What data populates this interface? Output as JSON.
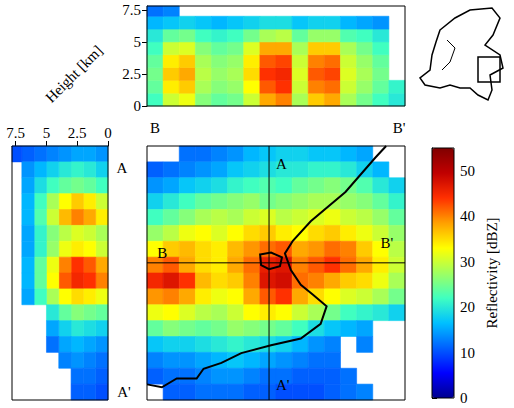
{
  "chart_data": [
    {
      "type": "heatmap",
      "tick_labels": false,
      "map_labels": [
        "A",
        "A'",
        "B",
        "B'"
      ],
      "cells": [
        [
          null,
          null,
          12,
          12,
          13,
          14,
          16,
          17,
          18,
          18,
          17,
          17,
          16,
          15,
          null,
          null
        ],
        [
          11,
          12,
          13,
          14,
          15,
          17,
          18,
          19,
          20,
          20,
          21,
          21,
          20,
          18,
          16,
          null
        ],
        [
          14,
          15,
          17,
          18,
          19,
          21,
          22,
          23,
          22,
          24,
          25,
          26,
          25,
          23,
          20,
          18
        ],
        [
          18,
          20,
          22,
          24,
          25,
          26,
          27,
          25,
          26,
          27,
          28,
          28,
          27,
          26,
          24,
          21
        ],
        [
          22,
          24,
          26,
          28,
          29,
          28,
          30,
          31,
          29,
          30,
          31,
          32,
          30,
          29,
          27,
          24
        ],
        [
          27,
          29,
          32,
          33,
          31,
          33,
          35,
          36,
          34,
          33,
          35,
          36,
          34,
          32,
          30,
          27
        ],
        [
          33,
          36,
          37,
          35,
          34,
          37,
          39,
          41,
          42,
          38,
          39,
          41,
          40,
          36,
          33,
          29
        ],
        [
          40,
          42,
          38,
          35,
          34,
          38,
          41,
          46,
          47,
          40,
          42,
          44,
          41,
          38,
          34,
          30
        ],
        [
          45,
          47,
          44,
          37,
          35,
          36,
          40,
          47,
          48,
          41,
          40,
          38,
          36,
          35,
          32,
          28
        ],
        [
          39,
          40,
          38,
          34,
          32,
          33,
          38,
          42,
          44,
          38,
          35,
          33,
          31,
          30,
          28,
          25
        ],
        [
          32,
          33,
          31,
          29,
          28,
          30,
          33,
          34,
          33,
          30,
          28,
          25,
          22,
          21,
          20,
          18
        ],
        [
          24,
          26,
          25,
          24,
          25,
          27,
          26,
          25,
          24,
          22,
          19,
          17,
          16,
          15,
          null,
          null
        ],
        [
          17,
          18,
          18,
          19,
          20,
          21,
          20,
          19,
          18,
          16,
          14,
          13,
          null,
          13,
          null,
          null
        ],
        [
          13,
          14,
          14,
          15,
          16,
          17,
          16,
          15,
          14,
          13,
          12,
          12,
          null,
          null,
          null,
          null
        ],
        [
          11,
          12,
          12,
          13,
          14,
          14,
          13,
          12,
          12,
          11,
          11,
          11,
          12,
          null,
          null,
          null
        ],
        [
          null,
          11,
          11,
          12,
          12,
          12,
          11,
          11,
          10,
          10,
          10,
          11,
          12,
          13,
          null,
          null
        ]
      ]
    },
    {
      "type": "heatmap",
      "start_label": "B",
      "end_label": "B'",
      "ylim": [
        0,
        7.8
      ],
      "yticks": [
        0,
        2.5,
        5,
        7.5
      ],
      "height_bins": [
        0,
        1,
        2,
        3,
        4,
        5,
        6,
        7,
        7.8
      ],
      "cells": [
        [
          22,
          24,
          25,
          24,
          22,
          20,
          16,
          12
        ],
        [
          30,
          34,
          36,
          34,
          30,
          24,
          17,
          13
        ],
        [
          32,
          36,
          38,
          36,
          31,
          25,
          18,
          null
        ],
        [
          26,
          28,
          29,
          28,
          26,
          22,
          17,
          null
        ],
        [
          24,
          26,
          27,
          26,
          24,
          21,
          16,
          null
        ],
        [
          25,
          27,
          28,
          27,
          25,
          22,
          17,
          null
        ],
        [
          30,
          33,
          35,
          34,
          31,
          25,
          18,
          null
        ],
        [
          38,
          42,
          44,
          42,
          38,
          28,
          19,
          null
        ],
        [
          40,
          44,
          45,
          43,
          38,
          29,
          19,
          null
        ],
        [
          28,
          30,
          31,
          30,
          28,
          24,
          17,
          null
        ],
        [
          36,
          40,
          42,
          40,
          36,
          27,
          18,
          null
        ],
        [
          38,
          41,
          43,
          41,
          36,
          27,
          18,
          null
        ],
        [
          28,
          30,
          31,
          30,
          28,
          23,
          16,
          null
        ],
        [
          25,
          27,
          28,
          27,
          25,
          22,
          15,
          null
        ],
        [
          22,
          24,
          25,
          24,
          22,
          20,
          14,
          null
        ],
        [
          20,
          21,
          null,
          null,
          null,
          null,
          null,
          null
        ]
      ]
    },
    {
      "type": "heatmap",
      "start_label": "A",
      "end_label": "A'",
      "xlabel": "Height [km]",
      "xlim": [
        0,
        7.8
      ],
      "xticks": [
        0,
        2.5,
        5,
        7.5
      ],
      "height_bins": [
        0,
        1,
        2,
        3,
        4,
        5,
        6,
        7,
        7.8
      ],
      "cells": [
        [
          14,
          15,
          15,
          14,
          13,
          12,
          11,
          10
        ],
        [
          18,
          20,
          21,
          20,
          18,
          16,
          14,
          null
        ],
        [
          22,
          24,
          25,
          24,
          22,
          19,
          15,
          null
        ],
        [
          30,
          34,
          36,
          33,
          28,
          22,
          16,
          null
        ],
        [
          34,
          38,
          40,
          37,
          30,
          23,
          16,
          null
        ],
        [
          28,
          30,
          31,
          29,
          26,
          21,
          15,
          null
        ],
        [
          30,
          33,
          34,
          32,
          27,
          21,
          15,
          null
        ],
        [
          38,
          42,
          44,
          40,
          32,
          24,
          16,
          null
        ],
        [
          40,
          44,
          45,
          42,
          33,
          24,
          16,
          null
        ],
        [
          32,
          34,
          35,
          33,
          28,
          22,
          15,
          null
        ],
        [
          24,
          25,
          26,
          24,
          20,
          null,
          null,
          null
        ],
        [
          18,
          19,
          20,
          18,
          15,
          null,
          null,
          null
        ],
        [
          14,
          15,
          16,
          15,
          12,
          null,
          null,
          null
        ],
        [
          12,
          13,
          14,
          13,
          null,
          null,
          null,
          null
        ],
        [
          11,
          12,
          12,
          null,
          null,
          null,
          null,
          null
        ],
        [
          10,
          11,
          11,
          null,
          null,
          null,
          null,
          null
        ]
      ]
    }
  ],
  "colorbar": {
    "label": "Reflectivity [dBZ]",
    "range": [
      0,
      55
    ],
    "ticks": [
      0,
      10,
      20,
      30,
      40,
      50
    ]
  }
}
